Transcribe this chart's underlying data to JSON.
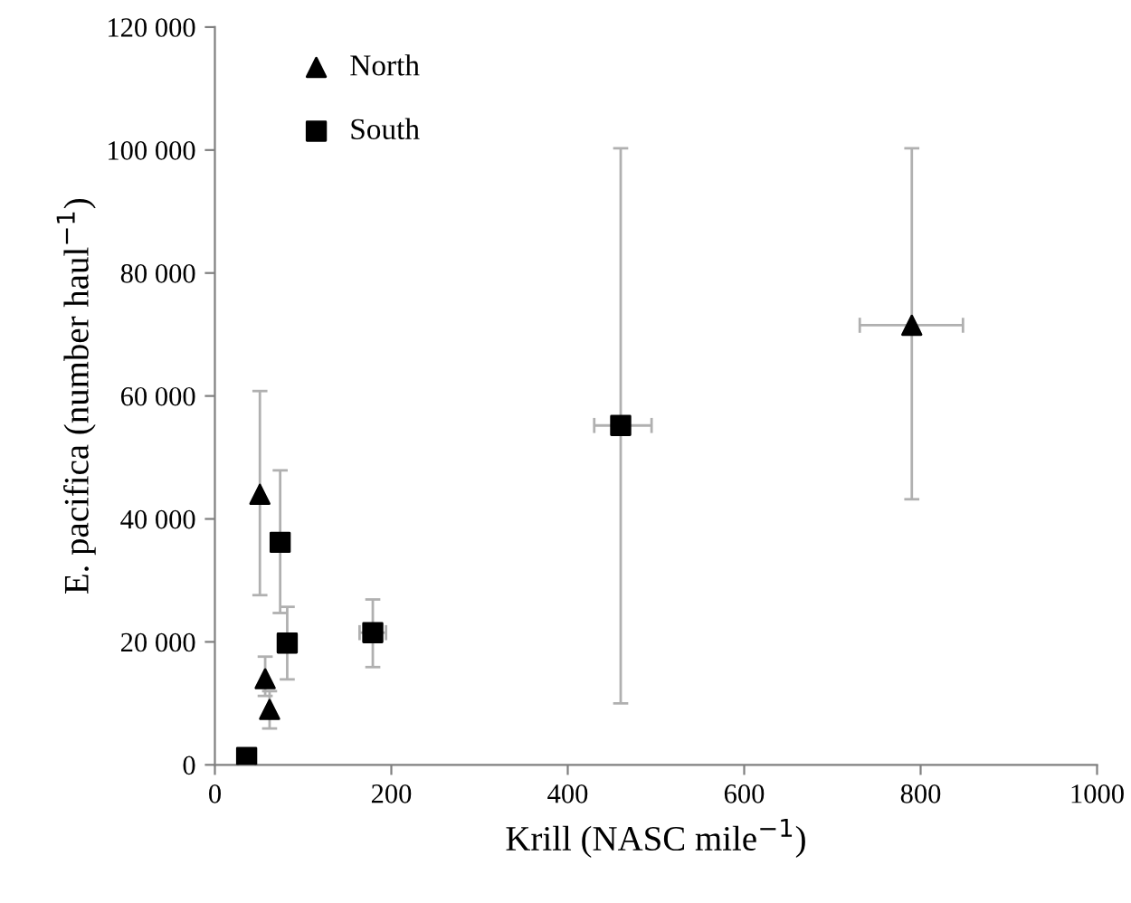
{
  "chart_data": {
    "type": "scatter",
    "xlabel": "Krill (NASC mile$^{−1}$)",
    "ylabel": "E. pacifica (number haul$^{−1}$)",
    "xlim": [
      0,
      1000
    ],
    "xticks": [
      0,
      200,
      400,
      600,
      800,
      1000
    ],
    "ylim": [
      0,
      120000
    ],
    "yticks": [
      {
        "value": 0,
        "label": "0"
      },
      {
        "value": 20000,
        "label": "20 000"
      },
      {
        "value": 40000,
        "label": "40 000"
      },
      {
        "value": 60000,
        "label": "60 000"
      },
      {
        "value": 80000,
        "label": "80 000"
      },
      {
        "value": 100000,
        "label": "100 000"
      },
      {
        "value": 120000,
        "label": "120 000"
      }
    ],
    "grid": false,
    "legend": "top left",
    "series": [
      {
        "name": "North",
        "color": "#000000",
        "marker": "triangle",
        "x": [
          51,
          57,
          62,
          790
        ],
        "values": [
          44000,
          14000,
          9000,
          71500
        ],
        "errors": [
          [
            27600,
            60800
          ],
          [
            11200,
            17600
          ],
          [
            5900,
            12000
          ],
          [
            43200,
            100300
          ]
        ],
        "xerrors": [
          null,
          null,
          null,
          [
            731,
            848
          ]
        ]
      },
      {
        "name": "South",
        "color": "#000000",
        "marker": "square",
        "x": [
          36,
          74,
          82,
          179,
          460
        ],
        "values": [
          1200,
          36200,
          19800,
          21500,
          55200
        ],
        "errors": [
          null,
          [
            24700,
            47900
          ],
          [
            13900,
            25700
          ],
          [
            15900,
            26900
          ],
          [
            10000,
            100300
          ]
        ],
        "xerrors": [
          null,
          null,
          null,
          [
            164,
            194
          ],
          [
            430,
            495
          ]
        ]
      }
    ]
  }
}
